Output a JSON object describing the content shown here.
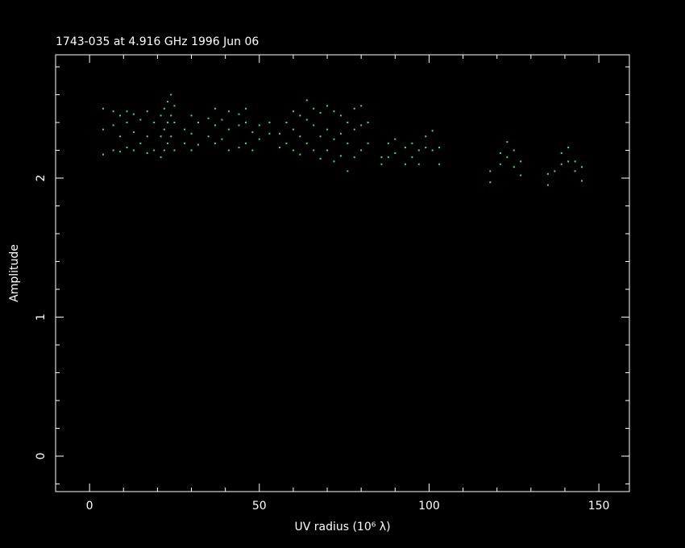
{
  "chart_data": {
    "type": "scatter",
    "title": "1743-035 at 4.916 GHz 1996 Jun 06",
    "x_label": "UV radius  (10⁶ λ)",
    "y_label": "Amplitude",
    "color": "#22ee88",
    "xlim": [
      -10,
      159
    ],
    "ylim": [
      -0.255,
      2.887
    ],
    "xticks": [
      0,
      50,
      100,
      150
    ],
    "yticks": [
      0,
      1,
      2
    ],
    "xminorticks": [
      -10,
      10,
      20,
      30,
      40,
      60,
      70,
      80,
      90,
      110,
      120,
      130,
      140
    ],
    "yminorticks": [
      -0.2,
      0.2,
      0.4,
      0.6,
      0.8,
      1.2,
      1.4,
      1.6,
      1.8,
      2.2,
      2.4,
      2.6,
      2.8
    ],
    "x": [
      4,
      4,
      4,
      7,
      7,
      7,
      9,
      9,
      9,
      11,
      11,
      11,
      13,
      13,
      13,
      15,
      15,
      17,
      17,
      17,
      19,
      19,
      21,
      21,
      21,
      22,
      22,
      22,
      23,
      23,
      23,
      24,
      24,
      24,
      25,
      25,
      25,
      28,
      28,
      30,
      30,
      30,
      32,
      32,
      35,
      35,
      37,
      37,
      37,
      39,
      39,
      41,
      41,
      41,
      44,
      44,
      44,
      46,
      46,
      46,
      48,
      48,
      50,
      50,
      53,
      53,
      56,
      56,
      58,
      58,
      60,
      60,
      60,
      62,
      62,
      62,
      64,
      64,
      64,
      66,
      66,
      66,
      68,
      68,
      68,
      70,
      70,
      70,
      72,
      72,
      72,
      74,
      74,
      74,
      76,
      76,
      76,
      78,
      78,
      78,
      80,
      80,
      80,
      82,
      82,
      86,
      86,
      88,
      88,
      90,
      90,
      93,
      93,
      95,
      95,
      97,
      97,
      99,
      99,
      101,
      101,
      103,
      103,
      118,
      118,
      121,
      121,
      123,
      123,
      125,
      125,
      127,
      127,
      135,
      135,
      137,
      139,
      139,
      141,
      141,
      143,
      143,
      145,
      145
    ],
    "y": [
      2.17,
      2.35,
      2.5,
      2.2,
      2.38,
      2.48,
      2.19,
      2.3,
      2.45,
      2.22,
      2.4,
      2.48,
      2.2,
      2.33,
      2.46,
      2.25,
      2.42,
      2.18,
      2.3,
      2.48,
      2.2,
      2.4,
      2.15,
      2.3,
      2.45,
      2.2,
      2.35,
      2.5,
      2.25,
      2.4,
      2.55,
      2.3,
      2.45,
      2.6,
      2.2,
      2.4,
      2.52,
      2.25,
      2.35,
      2.2,
      2.32,
      2.45,
      2.24,
      2.4,
      2.3,
      2.43,
      2.25,
      2.38,
      2.5,
      2.28,
      2.42,
      2.2,
      2.35,
      2.48,
      2.22,
      2.38,
      2.46,
      2.25,
      2.4,
      2.5,
      2.2,
      2.33,
      2.28,
      2.38,
      2.32,
      2.4,
      2.22,
      2.32,
      2.25,
      2.4,
      2.2,
      2.35,
      2.48,
      2.17,
      2.3,
      2.45,
      2.25,
      2.42,
      2.56,
      2.2,
      2.38,
      2.5,
      2.14,
      2.3,
      2.47,
      2.2,
      2.35,
      2.52,
      2.12,
      2.28,
      2.48,
      2.16,
      2.32,
      2.45,
      2.05,
      2.25,
      2.4,
      2.15,
      2.35,
      2.5,
      2.2,
      2.38,
      2.52,
      2.25,
      2.4,
      2.1,
      2.15,
      2.15,
      2.25,
      2.18,
      2.28,
      2.1,
      2.22,
      2.15,
      2.25,
      2.1,
      2.2,
      2.22,
      2.3,
      2.2,
      2.34,
      2.1,
      2.22,
      1.97,
      2.05,
      2.1,
      2.18,
      2.15,
      2.26,
      2.08,
      2.2,
      2.02,
      2.12,
      1.95,
      2.03,
      2.05,
      2.1,
      2.18,
      2.12,
      2.22,
      2.05,
      2.12,
      1.98,
      2.08
    ]
  }
}
